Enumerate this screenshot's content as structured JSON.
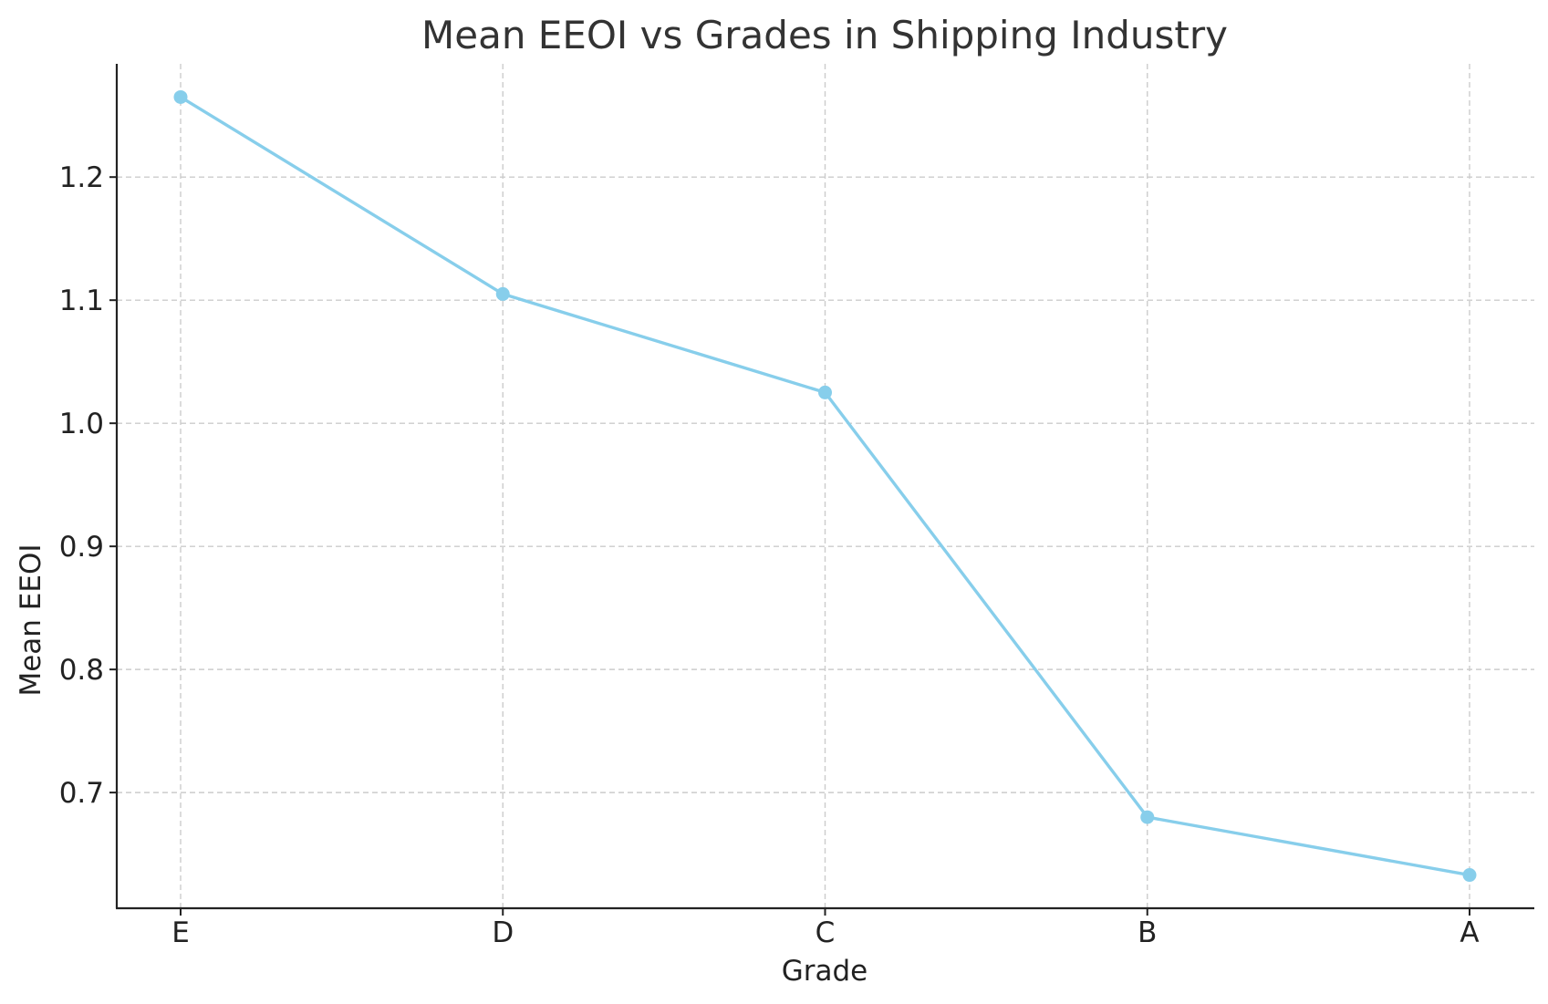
{
  "chart_data": {
    "type": "line",
    "title": "Mean EEOI vs Grades in Shipping Industry",
    "xlabel": "Grade",
    "ylabel": "Mean EEOI",
    "categories": [
      "E",
      "D",
      "C",
      "B",
      "A"
    ],
    "series": [
      {
        "values": [
          1.265,
          1.105,
          1.025,
          0.68,
          0.633
        ],
        "color": "#87CEEB",
        "marker": "circle"
      }
    ],
    "ylim": [
      0.606,
      1.292
    ],
    "yticks": [
      0.7,
      0.8,
      0.9,
      1.0,
      1.1,
      1.2
    ],
    "ytick_labels": [
      "0.7",
      "0.8",
      "0.9",
      "1.0",
      "1.1",
      "1.2"
    ],
    "grid": true,
    "legend": "none"
  }
}
